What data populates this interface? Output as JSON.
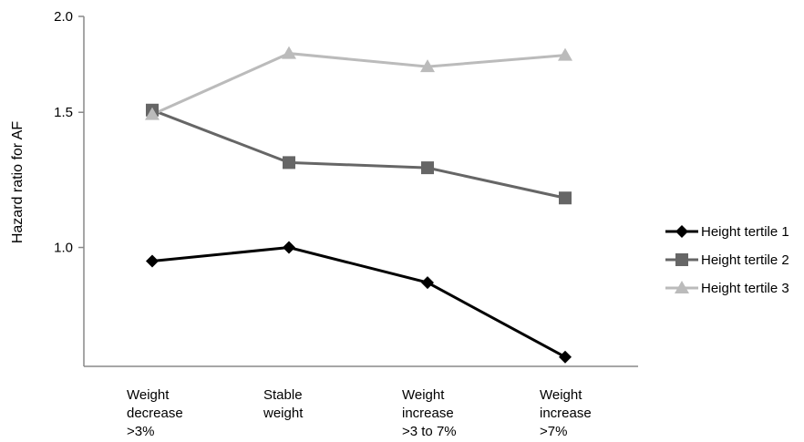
{
  "chart_data": {
    "type": "line",
    "ylabel": "Hazard ratio for AF",
    "yscale": "log",
    "ylim": [
      0.7,
      2.0
    ],
    "yticks": [
      "1.0",
      "1.5",
      "2.0"
    ],
    "ytick_values": [
      1.0,
      1.5,
      2.0
    ],
    "categories": [
      [
        "Weight",
        "decrease",
        ">3%"
      ],
      [
        "Stable",
        "weight"
      ],
      [
        "Weight",
        "increase",
        ">3 to 7%"
      ],
      [
        "Weight",
        "increase",
        ">7%"
      ]
    ],
    "series": [
      {
        "name": "Height tertile 1",
        "marker": "diamond",
        "color": "#000000",
        "values": [
          0.96,
          1.0,
          0.9,
          0.72
        ]
      },
      {
        "name": "Height tertile 2",
        "marker": "square",
        "color": "#666666",
        "values": [
          1.51,
          1.29,
          1.27,
          1.16
        ]
      },
      {
        "name": "Height tertile 3",
        "marker": "triangle",
        "color": "#bbbbbb",
        "values": [
          1.49,
          1.79,
          1.72,
          1.78
        ]
      }
    ],
    "legend_position": "right",
    "grid": false
  }
}
